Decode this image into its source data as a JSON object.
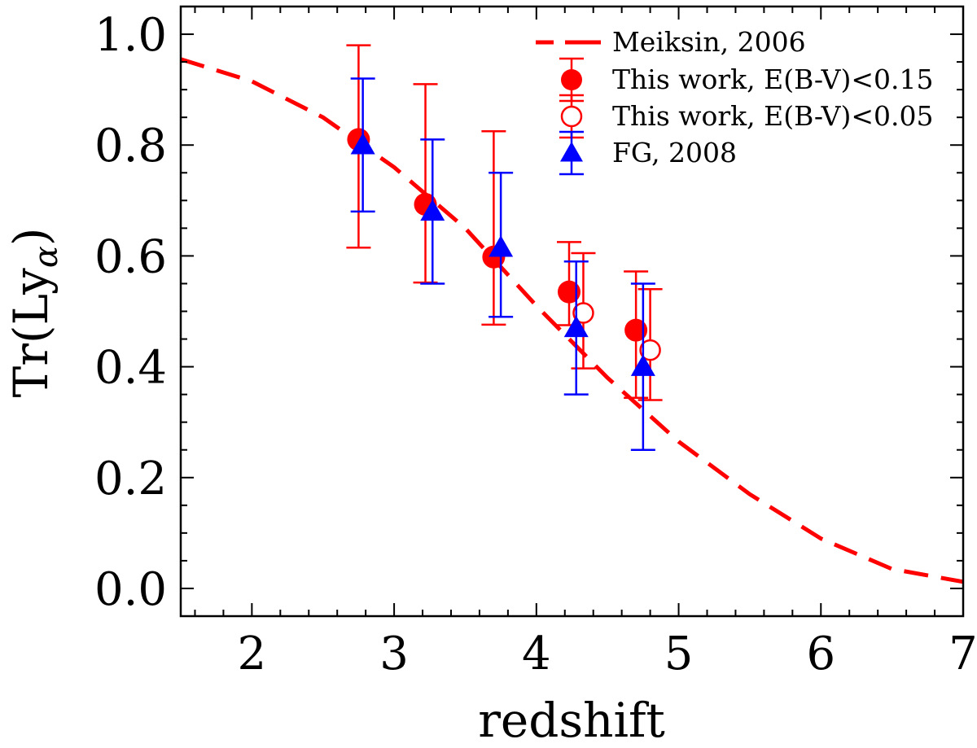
{
  "chart_data": {
    "type": "scatter",
    "xlabel": "redshift",
    "ylabel": "Tr(Ly",
    "ylabel_subscript": "α",
    "ylabel_close": ")",
    "xlim": [
      1.5,
      7
    ],
    "ylim": [
      -0.05,
      1.05
    ],
    "x_ticks": [
      2,
      3,
      4,
      5,
      6,
      7
    ],
    "x_tick_labels": [
      "2",
      "3",
      "4",
      "5",
      "6",
      "7"
    ],
    "y_ticks": [
      0.0,
      0.2,
      0.4,
      0.6,
      0.8,
      1.0
    ],
    "y_tick_labels": [
      "0.0",
      "0.2",
      "0.4",
      "0.6",
      "0.8",
      "1.0"
    ],
    "grid": false,
    "legend_position": "top-right",
    "series": [
      {
        "name": "Meiksin, 2006",
        "kind": "dashed-line",
        "color": "#ff0000",
        "x": [
          1.5,
          2.0,
          2.5,
          3.0,
          3.5,
          4.0,
          4.5,
          5.0,
          5.5,
          6.0,
          6.5,
          7.0
        ],
        "y": [
          0.955,
          0.915,
          0.85,
          0.76,
          0.65,
          0.51,
          0.38,
          0.265,
          0.17,
          0.09,
          0.035,
          0.012
        ]
      },
      {
        "name": "This work, E(B-V)<0.15",
        "kind": "filled-circle",
        "color": "#ff0000",
        "x": [
          2.75,
          3.22,
          3.7,
          4.23,
          4.7
        ],
        "y": [
          0.81,
          0.693,
          0.598,
          0.535,
          0.466
        ],
        "err_low": [
          0.195,
          0.141,
          0.122,
          0.06,
          0.122
        ],
        "err_high": [
          0.17,
          0.217,
          0.227,
          0.09,
          0.106
        ]
      },
      {
        "name": "This work, E(B-V)<0.05",
        "kind": "open-circle",
        "color": "#ff0000",
        "x": [
          4.33,
          4.8
        ],
        "y": [
          0.497,
          0.43
        ],
        "err_low": [
          0.1,
          0.09
        ],
        "err_high": [
          0.108,
          0.11
        ]
      },
      {
        "name": "FG, 2008",
        "kind": "filled-triangle",
        "color": "#0000ff",
        "x": [
          2.78,
          3.27,
          3.75,
          4.28,
          4.75
        ],
        "y": [
          0.8,
          0.68,
          0.615,
          0.47,
          0.4
        ],
        "err_low": [
          0.12,
          0.13,
          0.125,
          0.12,
          0.15
        ],
        "err_high": [
          0.12,
          0.13,
          0.135,
          0.12,
          0.15
        ]
      }
    ]
  }
}
